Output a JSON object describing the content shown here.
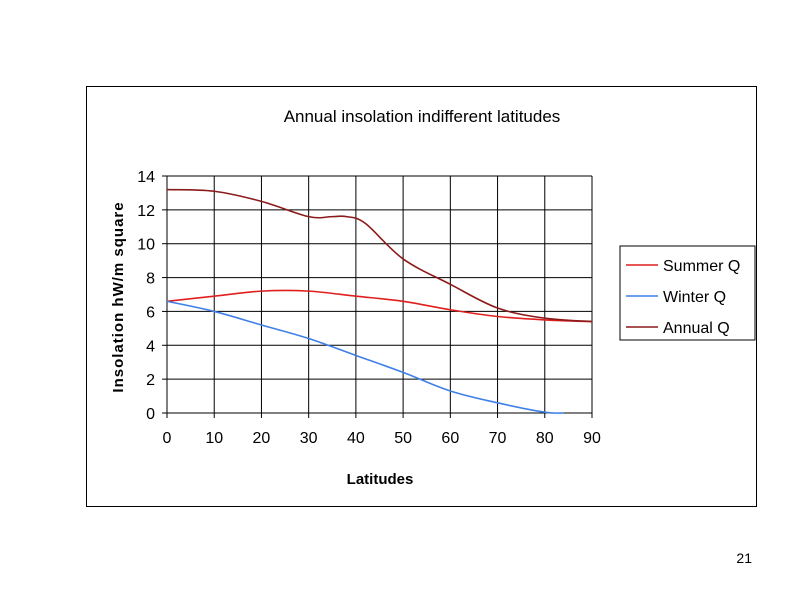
{
  "slide": {
    "number": "21"
  },
  "chart_data": {
    "type": "line",
    "title": "Annual insolation indifferent latitudes",
    "xlabel": "Latitudes",
    "ylabel": "Insolation hW/m square",
    "xlim": [
      0,
      90
    ],
    "ylim": [
      0,
      14
    ],
    "xticks": [
      0,
      10,
      20,
      30,
      40,
      50,
      60,
      70,
      80,
      90
    ],
    "yticks": [
      0,
      2,
      4,
      6,
      8,
      10,
      12,
      14
    ],
    "grid": true,
    "legend_position": "right",
    "series": [
      {
        "name": "Summer Q",
        "color": "#e01f1f",
        "x": [
          0,
          10,
          20,
          30,
          40,
          50,
          60,
          70,
          80,
          90
        ],
        "values": [
          6.6,
          6.9,
          7.2,
          7.2,
          6.9,
          6.6,
          6.1,
          5.7,
          5.5,
          5.4
        ]
      },
      {
        "name": "Winter Q",
        "color": "#3f7fe8",
        "x": [
          0,
          10,
          20,
          30,
          40,
          50,
          60,
          70,
          80,
          84
        ],
        "values": [
          6.6,
          6.0,
          5.2,
          4.4,
          3.4,
          2.4,
          1.3,
          0.6,
          0.05,
          0.0
        ]
      },
      {
        "name": "Annual Q",
        "color": "#8b1a1a",
        "x": [
          0,
          10,
          20,
          30,
          35,
          38,
          42,
          50,
          60,
          70,
          80,
          90
        ],
        "values": [
          13.2,
          13.1,
          12.5,
          11.6,
          11.6,
          11.6,
          11.2,
          9.1,
          7.6,
          6.2,
          5.6,
          5.4
        ]
      }
    ]
  }
}
